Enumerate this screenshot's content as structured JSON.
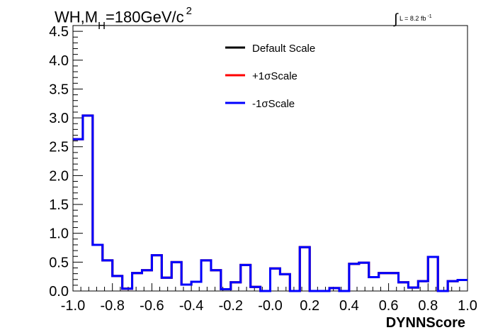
{
  "title": {
    "main": "WH,M",
    "subscript": "H",
    "rest": "=180GeV/c",
    "superscript": "2"
  },
  "lumi": {
    "integral_symbol": "∫",
    "text": "L = 8.2 fb",
    "superscript": "-1"
  },
  "chart_data": {
    "type": "line",
    "step": true,
    "xlabel": "DYNNScore",
    "ylabel": "",
    "xlim": [
      -1.0,
      1.0
    ],
    "ylim": [
      0,
      4.6
    ],
    "x_ticks": [
      "-1.0",
      "-0.8",
      "-0.6",
      "-0.4",
      "-0.2",
      "-0.0",
      "0.2",
      "0.4",
      "0.6",
      "0.8",
      "1.0"
    ],
    "y_ticks": [
      "0.0",
      "0.5",
      "1.0",
      "1.5",
      "2.0",
      "2.5",
      "3.0",
      "3.5",
      "4.0",
      "4.5"
    ],
    "bin_edges": [
      -1.0,
      -0.95,
      -0.9,
      -0.85,
      -0.8,
      -0.75,
      -0.7,
      -0.65,
      -0.6,
      -0.55,
      -0.5,
      -0.45,
      -0.4,
      -0.35,
      -0.3,
      -0.25,
      -0.2,
      -0.15,
      -0.1,
      -0.05,
      0.0,
      0.05,
      0.1,
      0.15,
      0.2,
      0.25,
      0.3,
      0.35,
      0.4,
      0.45,
      0.5,
      0.55,
      0.6,
      0.65,
      0.7,
      0.75,
      0.8,
      0.85,
      0.9,
      0.95,
      1.0
    ],
    "legend_position": "top-center",
    "series": [
      {
        "name": "Default Scale",
        "color": "#000000",
        "values": [
          2.63,
          3.04,
          0.8,
          0.53,
          0.26,
          0.04,
          0.31,
          0.36,
          0.62,
          0.23,
          0.5,
          0.11,
          0.16,
          0.53,
          0.36,
          0.03,
          0.15,
          0.45,
          0.07,
          0.0,
          0.39,
          0.29,
          0.0,
          0.76,
          0.0,
          0.0,
          0.05,
          0.0,
          0.47,
          0.49,
          0.24,
          0.31,
          0.31,
          0.15,
          0.06,
          0.17,
          0.59,
          0.0,
          0.17,
          0.19
        ]
      },
      {
        "name": "+1σScale",
        "color": "#ff0000",
        "values": [
          2.63,
          3.04,
          0.8,
          0.53,
          0.26,
          0.04,
          0.31,
          0.36,
          0.62,
          0.23,
          0.5,
          0.11,
          0.16,
          0.53,
          0.36,
          0.03,
          0.15,
          0.45,
          0.07,
          0.0,
          0.39,
          0.29,
          0.0,
          0.76,
          0.0,
          0.0,
          0.05,
          0.0,
          0.47,
          0.49,
          0.24,
          0.31,
          0.31,
          0.15,
          0.06,
          0.17,
          0.59,
          0.0,
          0.17,
          0.19
        ]
      },
      {
        "name": "-1σScale",
        "color": "#0000ff",
        "values": [
          2.63,
          3.04,
          0.8,
          0.53,
          0.26,
          0.04,
          0.31,
          0.36,
          0.62,
          0.23,
          0.5,
          0.11,
          0.16,
          0.53,
          0.36,
          0.03,
          0.15,
          0.45,
          0.07,
          0.0,
          0.39,
          0.29,
          0.0,
          0.76,
          0.0,
          0.0,
          0.05,
          0.0,
          0.47,
          0.49,
          0.24,
          0.31,
          0.31,
          0.15,
          0.06,
          0.17,
          0.59,
          0.0,
          0.17,
          0.19
        ]
      }
    ]
  }
}
